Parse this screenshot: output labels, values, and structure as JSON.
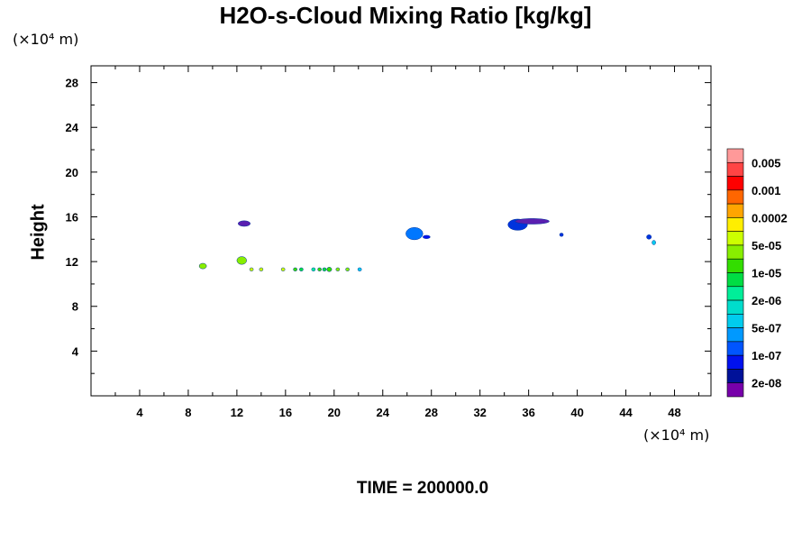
{
  "chart_data": {
    "type": "scatter",
    "title": "H2O-s-Cloud Mixing Ratio [kg/kg]",
    "xunit": "(×10⁴ m)",
    "yunit": "(×10⁴ m)",
    "xlabel": "",
    "ylabel": "Height",
    "footer": "TIME = 200000.0",
    "xlim": [
      0,
      51
    ],
    "ylim": [
      0,
      29.5
    ],
    "xticks": [
      4,
      8,
      12,
      16,
      20,
      24,
      28,
      32,
      36,
      40,
      44,
      48
    ],
    "yticks": [
      4,
      8,
      12,
      16,
      20,
      24,
      28
    ],
    "colorbar": {
      "labels": [
        "0.005",
        "0.001",
        "0.0002",
        "5e-05",
        "1e-05",
        "2e-06",
        "5e-07",
        "1e-07",
        "2e-08"
      ],
      "colors": [
        "#ff9999",
        "#ff4444",
        "#ff0000",
        "#ff6600",
        "#ffa500",
        "#ffee00",
        "#ccff00",
        "#88ee00",
        "#33dd00",
        "#00dd44",
        "#00ee99",
        "#00ddcc",
        "#00ccee",
        "#0099ff",
        "#0055ff",
        "#0011ee",
        "#001199",
        "#7700aa"
      ]
    },
    "cells": [
      {
        "x": 9.2,
        "y": 11.6,
        "rx": 0.3,
        "ry": 0.25,
        "color": "#88ee00"
      },
      {
        "x": 12.4,
        "y": 12.1,
        "rx": 0.4,
        "ry": 0.35,
        "color": "#88ee00"
      },
      {
        "x": 12.6,
        "y": 15.4,
        "rx": 0.5,
        "ry": 0.25,
        "color": "#5a1fb0"
      },
      {
        "x": 13.2,
        "y": 11.3,
        "rx": 0.15,
        "ry": 0.15,
        "color": "#ccff00"
      },
      {
        "x": 14.0,
        "y": 11.3,
        "rx": 0.15,
        "ry": 0.15,
        "color": "#ccff00"
      },
      {
        "x": 15.8,
        "y": 11.3,
        "rx": 0.15,
        "ry": 0.15,
        "color": "#ccff00"
      },
      {
        "x": 16.8,
        "y": 11.3,
        "rx": 0.15,
        "ry": 0.15,
        "color": "#33dd00"
      },
      {
        "x": 17.3,
        "y": 11.3,
        "rx": 0.15,
        "ry": 0.15,
        "color": "#00dd44"
      },
      {
        "x": 18.3,
        "y": 11.3,
        "rx": 0.15,
        "ry": 0.15,
        "color": "#00ee99"
      },
      {
        "x": 18.8,
        "y": 11.3,
        "rx": 0.15,
        "ry": 0.15,
        "color": "#33dd00"
      },
      {
        "x": 19.2,
        "y": 11.3,
        "rx": 0.15,
        "ry": 0.15,
        "color": "#00dd44"
      },
      {
        "x": 19.6,
        "y": 11.3,
        "rx": 0.2,
        "ry": 0.2,
        "color": "#33dd00"
      },
      {
        "x": 20.3,
        "y": 11.3,
        "rx": 0.15,
        "ry": 0.15,
        "color": "#88ee00"
      },
      {
        "x": 21.1,
        "y": 11.3,
        "rx": 0.15,
        "ry": 0.15,
        "color": "#88ee00"
      },
      {
        "x": 22.1,
        "y": 11.3,
        "rx": 0.15,
        "ry": 0.15,
        "color": "#00ccee"
      },
      {
        "x": 26.6,
        "y": 14.5,
        "rx": 0.7,
        "ry": 0.55,
        "color": "#0077ff"
      },
      {
        "x": 27.6,
        "y": 14.2,
        "rx": 0.3,
        "ry": 0.15,
        "color": "#0011ee"
      },
      {
        "x": 35.1,
        "y": 15.3,
        "rx": 0.8,
        "ry": 0.5,
        "color": "#0033dd"
      },
      {
        "x": 36.3,
        "y": 15.6,
        "rx": 1.4,
        "ry": 0.25,
        "color": "#5a1fb0"
      },
      {
        "x": 38.7,
        "y": 14.4,
        "rx": 0.15,
        "ry": 0.15,
        "color": "#0033dd"
      },
      {
        "x": 45.9,
        "y": 14.2,
        "rx": 0.2,
        "ry": 0.2,
        "color": "#0033dd"
      },
      {
        "x": 46.3,
        "y": 13.7,
        "rx": 0.15,
        "ry": 0.2,
        "color": "#00ccee"
      }
    ]
  }
}
